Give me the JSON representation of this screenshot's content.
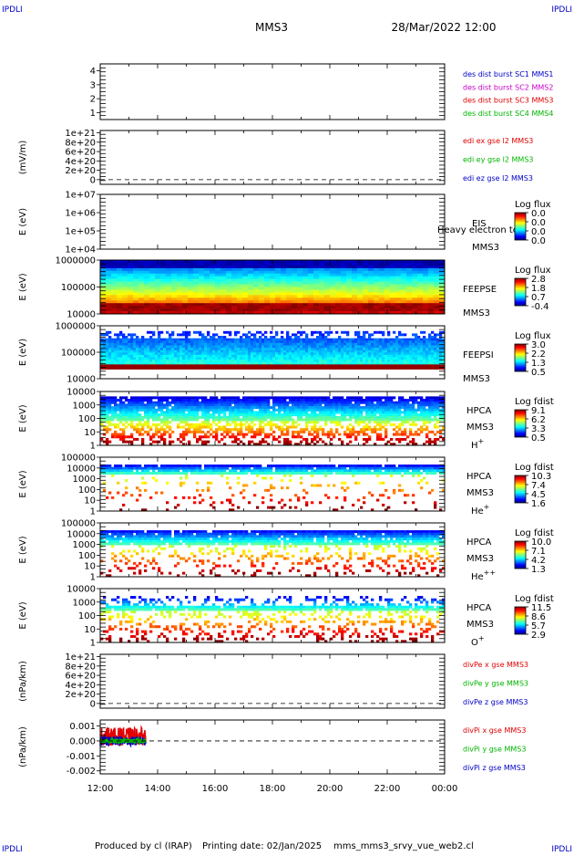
{
  "header": {
    "corner_tl": "IPDLI",
    "corner_tr": "IPDLI",
    "corner_bl": "IPDLI",
    "corner_br": "IPDLI",
    "spacecraft": "MMS3",
    "datetime": "28/Mar/2022 12:00"
  },
  "footer": {
    "producer": "Produced by cl (IRAP)",
    "printing_date": "Printing date: 02/Jan/2025",
    "script_name": "mms_mms3_srvy_vue_web2.cl"
  },
  "colors": {
    "ink": "#000000",
    "red": "#e00000",
    "green": "#00b400",
    "blue": "#0000c8",
    "magenta": "#c800c8"
  },
  "time_axis": {
    "start": "2022-03-28T12:00",
    "end": "2022-03-29T00:00",
    "ticks": [
      "12:00",
      "14:00",
      "16:00",
      "18:00",
      "20:00",
      "22:00",
      "00:00"
    ]
  },
  "chart_data": [
    {
      "id": "dist",
      "type": "line",
      "ylabel": "",
      "yticks": [
        "1",
        "2",
        "3",
        "4"
      ],
      "ylim": [
        0.5,
        4.5
      ],
      "legend": [
        {
          "text": "des dist burst SC1 MMS1",
          "color": "#0000c8"
        },
        {
          "text": "des dist burst SC2 MMS2",
          "color": "#c800c8"
        },
        {
          "text": "des dist burst SC3 MMS3",
          "color": "#e00000"
        },
        {
          "text": "des dist burst SC4 MMS4",
          "color": "#00b400"
        }
      ],
      "series": []
    },
    {
      "id": "edi",
      "type": "line",
      "ylabel": "(mV/m)",
      "yticks": [
        "0",
        "2e+20",
        "4e+20",
        "6e+20",
        "8e+20",
        "1e+21"
      ],
      "ylim": [
        -1e+20,
        1.05e+21
      ],
      "zero_line": true,
      "legend": [
        {
          "text": "edi ex gse l2 MMS3",
          "color": "#e00000"
        },
        {
          "text": "edi ey gse l2 MMS3",
          "color": "#00b400"
        },
        {
          "text": "edi ez gse l2 MMS3",
          "color": "#0000c8"
        }
      ],
      "series": []
    },
    {
      "id": "eis",
      "type": "heatmap",
      "ylabel": "E (eV)",
      "yticks": [
        "1e+04",
        "1e+05",
        "1e+06",
        "1e+07"
      ],
      "labels": [
        "EIS",
        "MMS3"
      ],
      "overlay_text": "Heavy electron to",
      "colorbar": {
        "title": "Log flux",
        "ticks": [
          "0.0",
          "0.0",
          "0.0",
          "0.0"
        ]
      },
      "pattern": "empty"
    },
    {
      "id": "feepse",
      "type": "heatmap",
      "ylabel": "E (eV)",
      "yticks": [
        "10000",
        "100000",
        "1000000"
      ],
      "labels": [
        "FEEPSE",
        "MMS3"
      ],
      "colorbar": {
        "title": "Log flux",
        "ticks": [
          "2.8",
          "1.8",
          "0.7",
          "-0.4"
        ]
      },
      "pattern": "electron"
    },
    {
      "id": "feepsi",
      "type": "heatmap",
      "ylabel": "E (eV)",
      "yticks": [
        "10000",
        "100000",
        "1000000"
      ],
      "labels": [
        "FEEPSI",
        "MMS3"
      ],
      "colorbar": {
        "title": "Log flux",
        "ticks": [
          "3.0",
          "2.2",
          "1.3",
          "0.5"
        ]
      },
      "pattern": "ion"
    },
    {
      "id": "hpca_h",
      "type": "heatmap",
      "ylabel": "E (eV)",
      "yticks": [
        "1",
        "10",
        "100",
        "1000",
        "10000"
      ],
      "labels": [
        "HPCA",
        "MMS3"
      ],
      "species": "H",
      "charge": "+",
      "colorbar": {
        "title": "Log fdist",
        "ticks": [
          "9.1",
          "6.2",
          "3.3",
          "0.5"
        ]
      },
      "pattern": "hpca"
    },
    {
      "id": "hpca_he1",
      "type": "heatmap",
      "ylabel": "E (eV)",
      "yticks": [
        "1",
        "10",
        "100",
        "1000",
        "10000",
        "100000"
      ],
      "labels": [
        "HPCA",
        "MMS3"
      ],
      "species": "He",
      "charge": "+",
      "colorbar": {
        "title": "Log fdist",
        "ticks": [
          "10.3",
          "7.4",
          "4.5",
          "1.6"
        ]
      },
      "pattern": "hpca_sparse"
    },
    {
      "id": "hpca_he2",
      "type": "heatmap",
      "ylabel": "E (eV)",
      "yticks": [
        "1",
        "10",
        "100",
        "1000",
        "10000",
        "100000"
      ],
      "labels": [
        "HPCA",
        "MMS3"
      ],
      "species": "He",
      "charge": "++",
      "colorbar": {
        "title": "Log fdist",
        "ticks": [
          "10.0",
          "7.1",
          "4.2",
          "1.3"
        ]
      },
      "pattern": "hpca_mid"
    },
    {
      "id": "hpca_o",
      "type": "heatmap",
      "ylabel": "E (eV)",
      "yticks": [
        "1",
        "10",
        "100",
        "1000",
        "10000"
      ],
      "labels": [
        "HPCA",
        "MMS3"
      ],
      "species": "O",
      "charge": "+",
      "colorbar": {
        "title": "Log fdist",
        "ticks": [
          "11.5",
          "8.6",
          "5.7",
          "2.9"
        ]
      },
      "pattern": "hpca_o"
    },
    {
      "id": "divpe",
      "type": "line",
      "ylabel": "(nPa/km)",
      "yticks": [
        "0",
        "2e+20",
        "4e+20",
        "6e+20",
        "8e+20",
        "1e+21"
      ],
      "ylim": [
        -1e+20,
        1.05e+21
      ],
      "zero_line": true,
      "legend": [
        {
          "text": "divPe x gse MMS3",
          "color": "#e00000"
        },
        {
          "text": "divPe y gse MMS3",
          "color": "#00b400"
        },
        {
          "text": "divPe z gse MMS3",
          "color": "#0000c8"
        }
      ],
      "series": []
    },
    {
      "id": "divpi",
      "type": "line",
      "ylabel": "(nPa/km)",
      "yticks": [
        "-0.002",
        "-0.001",
        "0.000",
        "0.001"
      ],
      "ylim": [
        -0.0022,
        0.0014
      ],
      "zero_line": true,
      "legend": [
        {
          "text": "divPi x gse MMS3",
          "color": "#e00000"
        },
        {
          "text": "divPi y gse MMS3",
          "color": "#00b400"
        },
        {
          "text": "divPi z gse MMS3",
          "color": "#0000c8"
        }
      ],
      "series": [
        {
          "name": "divPi x gse MMS3",
          "color": "#e00000",
          "x_end": "13:35",
          "center": 0.0003,
          "amplitude": 0.0006
        },
        {
          "name": "divPi z gse MMS3",
          "color": "#0000c8",
          "x_end": "13:35",
          "center": 0.0,
          "amplitude": 0.0003
        },
        {
          "name": "divPi y gse MMS3",
          "color": "#00b400",
          "x_end": "13:35",
          "center": 0.0,
          "amplitude": 0.00015
        }
      ]
    }
  ]
}
